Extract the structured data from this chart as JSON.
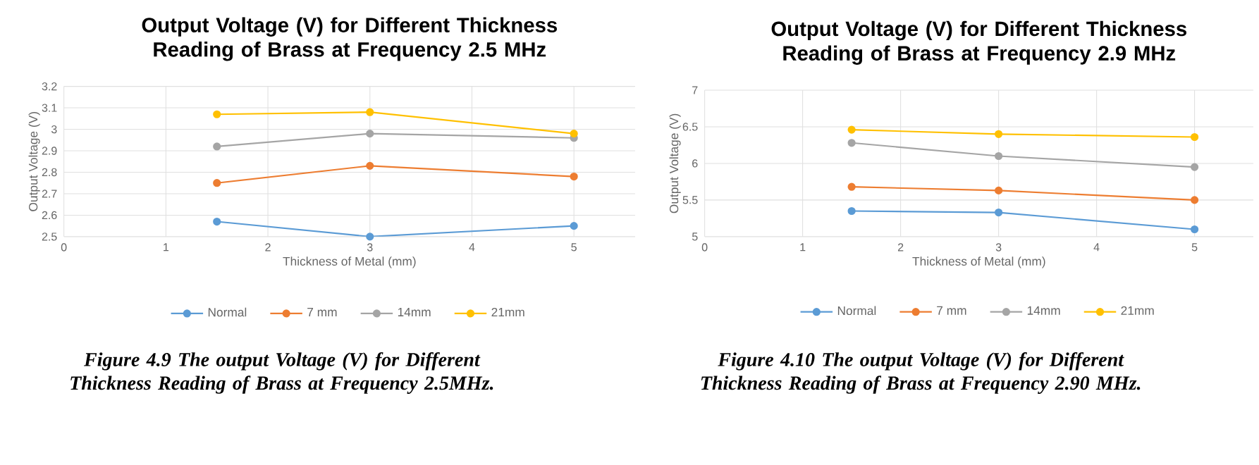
{
  "chart_data": [
    {
      "type": "line",
      "title": "Output Voltage (V) for Different Thickness Reading of Brass at Frequency 2.5 MHz",
      "xlabel": "Thickness of Metal (mm)",
      "ylabel": "Output Voltage (V)",
      "x": [
        1.5,
        3,
        5
      ],
      "xlim": [
        0,
        5.6
      ],
      "xticks": [
        0,
        1,
        2,
        3,
        4,
        5
      ],
      "ylim": [
        2.5,
        3.2
      ],
      "yticks": [
        2.5,
        2.6,
        2.7,
        2.8,
        2.9,
        3,
        3.1,
        3.2
      ],
      "grid": true,
      "legend": "bottom",
      "marker": "circle",
      "series": [
        {
          "name": "Normal",
          "color": "#5b9bd5",
          "values": [
            2.57,
            2.5,
            2.55
          ]
        },
        {
          "name": "7 mm",
          "color": "#ed7d31",
          "values": [
            2.75,
            2.83,
            2.78
          ]
        },
        {
          "name": "14mm",
          "color": "#a5a5a5",
          "values": [
            2.92,
            2.98,
            2.96
          ]
        },
        {
          "name": "21mm",
          "color": "#ffc000",
          "values": [
            3.07,
            3.08,
            2.98
          ]
        }
      ],
      "annotations": [
        "Figure 4.9 The output Voltage (V) for Different Thickness Reading of Brass at Frequency 2.5MHz."
      ]
    },
    {
      "type": "line",
      "title": "Output Voltage (V) for Different Thickness Reading of Brass at Frequency  2.9 MHz",
      "xlabel": "Thickness of Metal (mm)",
      "ylabel": "Output Voltage (V)",
      "x": [
        1.5,
        3,
        5
      ],
      "xlim": [
        0,
        5.6
      ],
      "xticks": [
        0,
        1,
        2,
        3,
        4,
        5
      ],
      "ylim": [
        5,
        7
      ],
      "yticks": [
        5,
        5.5,
        6,
        6.5,
        7
      ],
      "grid": true,
      "legend": "bottom",
      "marker": "circle",
      "series": [
        {
          "name": "Normal",
          "color": "#5b9bd5",
          "values": [
            5.35,
            5.33,
            5.1
          ]
        },
        {
          "name": "7 mm",
          "color": "#ed7d31",
          "values": [
            5.68,
            5.63,
            5.5
          ]
        },
        {
          "name": "14mm",
          "color": "#a5a5a5",
          "values": [
            6.28,
            6.1,
            5.95
          ]
        },
        {
          "name": "21mm",
          "color": "#ffc000",
          "values": [
            6.46,
            6.4,
            6.36
          ]
        }
      ],
      "annotations": [
        "Figure 4.10 The output Voltage (V) for Different Thickness Reading of Brass at Frequency 2.90 MHz."
      ]
    }
  ]
}
